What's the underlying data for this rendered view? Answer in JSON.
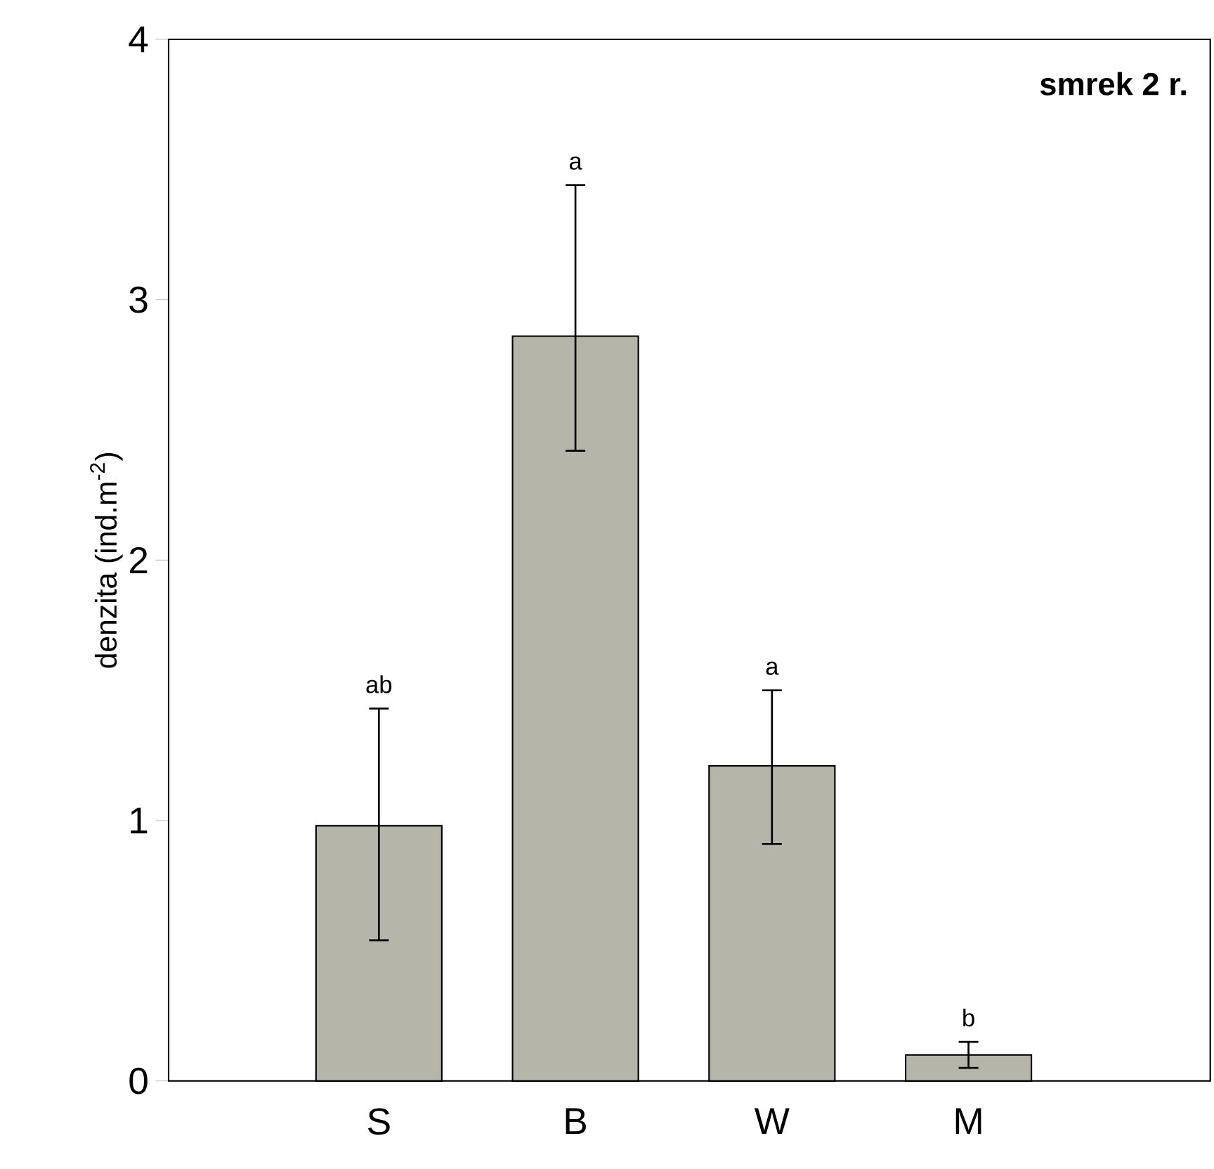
{
  "chart_data": {
    "type": "bar",
    "ylabel": "denzita (ind.m$^{-2}$)",
    "categories": [
      "S",
      "B",
      "W",
      "M"
    ],
    "values": [
      0.98,
      2.86,
      1.21,
      0.1
    ],
    "errors": [
      [
        0.54,
        1.43
      ],
      [
        2.42,
        3.44
      ],
      [
        0.91,
        1.5
      ],
      [
        0.05,
        0.15
      ]
    ],
    "color": "#b5b5a9",
    "ylim": [
      0,
      4
    ],
    "yticks": [
      0,
      1,
      2,
      3,
      4
    ],
    "annotations": [
      "smrek 2 r.",
      {
        "text": "ab",
        "x": "S",
        "y": 1.43
      },
      {
        "text": "a",
        "x": "B",
        "y": 3.44
      },
      {
        "text": "a",
        "x": "W",
        "y": 1.5
      },
      {
        "text": "b",
        "x": "M",
        "y": 0.15
      }
    ]
  }
}
